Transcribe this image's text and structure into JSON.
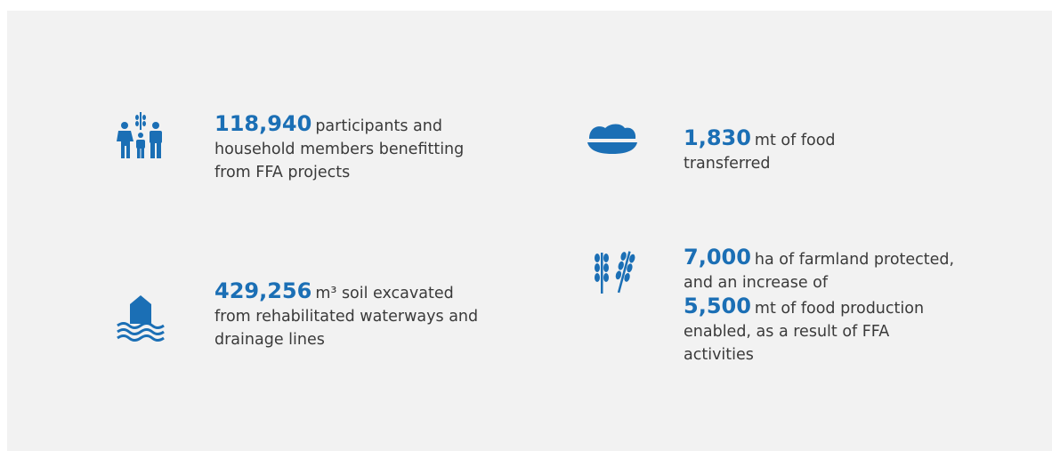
{
  "items": [
    {
      "parts": [
        {
          "number": "118,940"
        },
        {
          "text": "participants and household members benefitting from FFA projects"
        }
      ]
    },
    {
      "parts": [
        {
          "number": "1,830"
        },
        {
          "text": "mt of food transferred"
        }
      ]
    },
    {
      "parts": [
        {
          "number": "429,256"
        },
        {
          "text": "m³ soil excavated from rehabilitated waterways and drainage lines"
        }
      ]
    },
    {
      "parts": [
        {
          "number": "7,000"
        },
        {
          "text": "ha of farmland protected, and an increase of"
        },
        {
          "number": "5,500"
        },
        {
          "text": "mt of food production enabled, as a result of FFA activities"
        }
      ]
    }
  ]
}
